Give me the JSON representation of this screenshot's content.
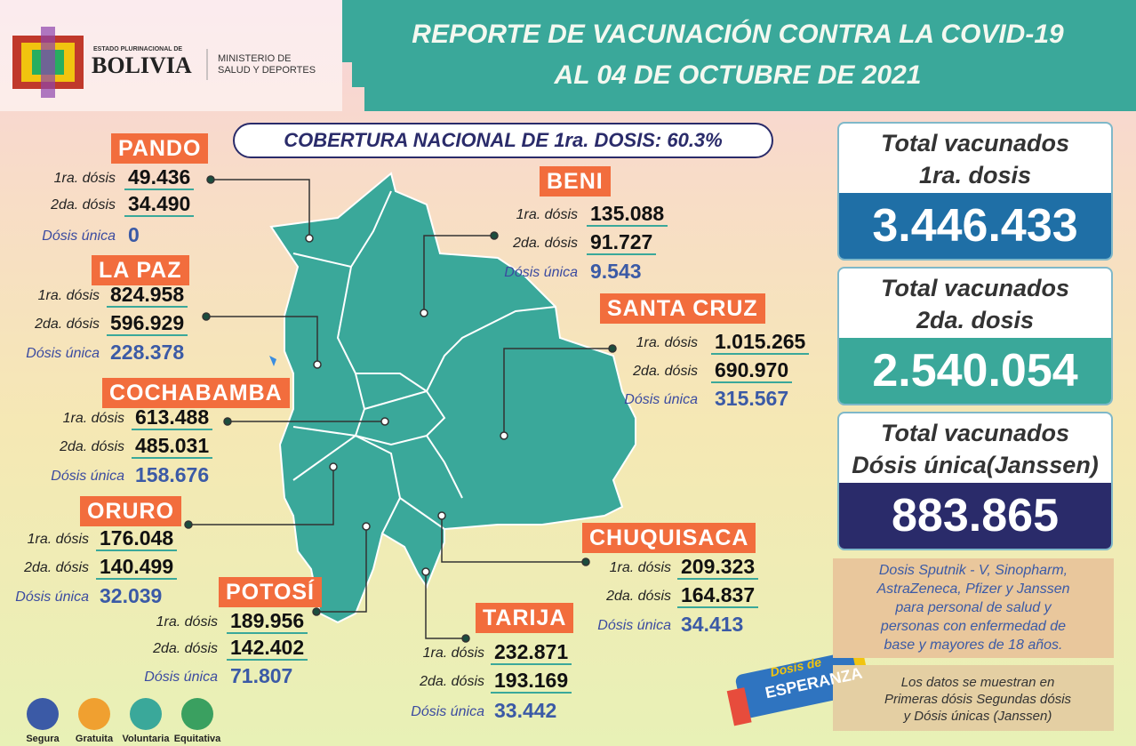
{
  "header": {
    "logo_small": "ESTADO PLURINACIONAL DE",
    "logo_big": "BOLIVIA",
    "ministry": [
      "MINISTERIO DE",
      "SALUD Y DEPORTES"
    ],
    "title": "REPORTE DE VACUNACIÓN CONTRA LA COVID-19",
    "subtitle": "AL 04 DE OCTUBRE DE 2021"
  },
  "coverage": "COBERTURA NACIONAL DE 1ra. DOSIS: 60.3%",
  "departments": [
    {
      "name": "PANDO",
      "rows": [
        {
          "label": "1ra. dósis",
          "value": "49.436"
        },
        {
          "label": "2da. dósis",
          "value": "34.490"
        },
        {
          "label": "Dósis única",
          "value": "0"
        }
      ]
    },
    {
      "name": "LA PAZ",
      "rows": [
        {
          "label": "1ra. dósis",
          "value": "824.958"
        },
        {
          "label": "2da. dósis",
          "value": "596.929"
        },
        {
          "label": "Dósis única",
          "value": "228.378"
        }
      ]
    },
    {
      "name": "COCHABAMBA",
      "rows": [
        {
          "label": "1ra. dósis",
          "value": "613.488"
        },
        {
          "label": "2da. dósis",
          "value": "485.031"
        },
        {
          "label": "Dósis única",
          "value": "158.676"
        }
      ]
    },
    {
      "name": "ORURO",
      "rows": [
        {
          "label": "1ra. dósis",
          "value": "176.048"
        },
        {
          "label": "2da. dósis",
          "value": "140.499"
        },
        {
          "label": "Dósis única",
          "value": "32.039"
        }
      ]
    },
    {
      "name": "POTOSÍ",
      "rows": [
        {
          "label": "1ra. dósis",
          "value": "189.956"
        },
        {
          "label": "2da. dósis",
          "value": "142.402"
        },
        {
          "label": "Dósis única",
          "value": "71.807"
        }
      ]
    },
    {
      "name": "BENI",
      "rows": [
        {
          "label": "1ra. dósis",
          "value": "135.088"
        },
        {
          "label": "2da. dósis",
          "value": "91.727"
        },
        {
          "label": "Dósis única",
          "value": "9.543"
        }
      ]
    },
    {
      "name": "SANTA CRUZ",
      "rows": [
        {
          "label": "1ra. dósis",
          "value": "1.015.265"
        },
        {
          "label": "2da. dósis",
          "value": "690.970"
        },
        {
          "label": "Dósis única",
          "value": "315.567"
        }
      ]
    },
    {
      "name": "CHUQUISACA",
      "rows": [
        {
          "label": "1ra. dósis",
          "value": "209.323"
        },
        {
          "label": "2da. dósis",
          "value": "164.837"
        },
        {
          "label": "Dósis única",
          "value": "34.413"
        }
      ]
    },
    {
      "name": "TARIJA",
      "rows": [
        {
          "label": "1ra. dósis",
          "value": "232.871"
        },
        {
          "label": "2da. dósis",
          "value": "193.169"
        },
        {
          "label": "Dósis única",
          "value": "33.442"
        }
      ]
    }
  ],
  "totals": [
    {
      "lines": [
        "Total vacunados",
        "1ra. dosis"
      ],
      "value": "3.446.433"
    },
    {
      "lines": [
        "Total vacunados",
        "2da. dosis"
      ],
      "value": "2.540.054"
    },
    {
      "lines": [
        "Total vacunados",
        "Dósis única(Janssen)"
      ],
      "value": "883.865"
    }
  ],
  "note_vaccines": [
    "Dosis Sputnik - V, Sinopharm,",
    "AstraZeneca, Pfizer y Janssen",
    "para personal de salud y",
    "personas con enfermedad de",
    "base y mayores de 18 años."
  ],
  "note_data": [
    "Los datos se muestran en",
    "Primeras dósis Segundas dósis",
    "y Dósis únicas (Janssen)"
  ],
  "campaign_logo": [
    "Dosis de",
    "ESPERANZA"
  ],
  "badges": [
    "Segura",
    "Gratuita",
    "Voluntaria",
    "Equitativa"
  ]
}
